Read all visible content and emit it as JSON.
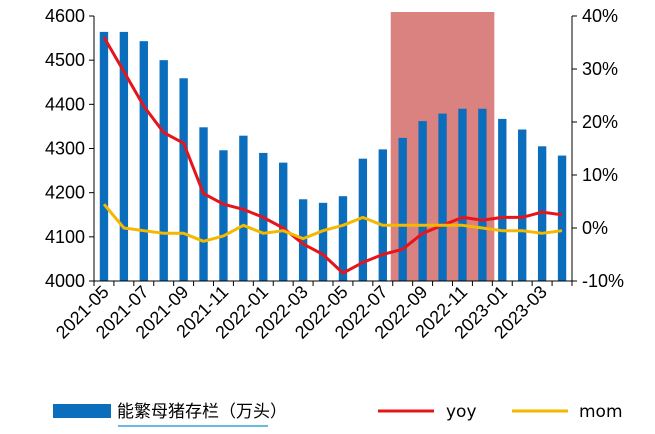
{
  "chart_data": {
    "type": "bar",
    "categories": [
      "2021-05",
      "2021-06",
      "2021-07",
      "2021-08",
      "2021-09",
      "2021-10",
      "2021-11",
      "2021-12",
      "2022-01",
      "2022-02",
      "2022-03",
      "2022-04",
      "2022-05",
      "2022-06",
      "2022-07",
      "2022-08",
      "2022-09",
      "2022-10",
      "2022-11",
      "2022-12",
      "2023-01",
      "2023-02",
      "2023-03",
      "2023-04"
    ],
    "x_tick_labels": [
      "2021-05",
      "2021-07",
      "2021-09",
      "2021-11",
      "2022-01",
      "2022-03",
      "2022-05",
      "2022-07",
      "2022-09",
      "2022-11",
      "2023-01",
      "2023-03"
    ],
    "series": [
      {
        "name": "能繁母猪存栏（万头）",
        "type": "bar",
        "axis": "left",
        "color": "#0a6ebd",
        "values": [
          4564,
          4564,
          4543,
          4500,
          4459,
          4348,
          4296,
          4329,
          4290,
          4268,
          4185,
          4177,
          4192,
          4277,
          4298,
          4324,
          4362,
          4379,
          4390,
          4390,
          4367,
          4343,
          4305,
          4284
        ]
      },
      {
        "name": "yoy",
        "type": "line",
        "axis": "right",
        "color": "#e8141b",
        "values": [
          36,
          29.5,
          23,
          18,
          16,
          6.5,
          4.5,
          3.5,
          2,
          0,
          -3,
          -5,
          -8.5,
          -6.5,
          -5,
          -4,
          -1,
          0.5,
          2,
          1.5,
          2,
          2,
          3,
          2.5
        ]
      },
      {
        "name": "mom",
        "type": "line",
        "axis": "right",
        "color": "#f5b800",
        "values": [
          4.5,
          0,
          -0.5,
          -1,
          -1,
          -2.5,
          -1.5,
          0.5,
          -1,
          -0.5,
          -2,
          -0.5,
          0.5,
          2,
          0.5,
          0.5,
          0.5,
          0.5,
          0.5,
          0,
          -0.5,
          -0.5,
          -1,
          -0.5
        ]
      }
    ],
    "y_left": {
      "min": 4000,
      "max": 4600,
      "ticks": [
        4000,
        4100,
        4200,
        4300,
        4400,
        4500,
        4600
      ]
    },
    "y_right": {
      "min": -10,
      "max": 40,
      "ticks": [
        "-10%",
        "0%",
        "10%",
        "20%",
        "30%",
        "40%"
      ]
    },
    "highlight": {
      "from": "2022-08",
      "to": "2022-12",
      "color": "#d9827f"
    },
    "legend": {
      "position": "bottom",
      "items": [
        "能繁母猪存栏（万头）",
        "yoy",
        "mom"
      ]
    }
  }
}
